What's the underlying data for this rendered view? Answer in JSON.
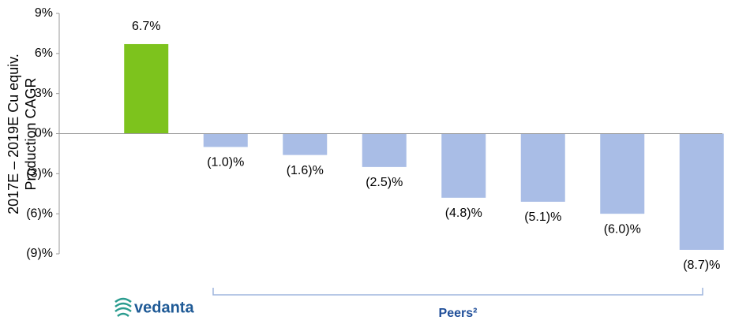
{
  "chart_data": {
    "type": "bar",
    "y_label": [
      "2017E – 2019E Cu equiv.",
      "Production CAGR"
    ],
    "categories": [
      "vedanta",
      null,
      null,
      null,
      null,
      null,
      null,
      null
    ],
    "values": [
      6.7,
      -1.0,
      -1.6,
      -2.5,
      -4.8,
      -5.1,
      -6.0,
      -8.7
    ],
    "value_labels": [
      "6.7%",
      "(1.0)%",
      "(1.6)%",
      "(2.5)%",
      "(4.8)%",
      "(5.1)%",
      "(6.0)%",
      "(8.7)%"
    ],
    "colors": [
      "#7dc31d",
      "#a9bde6",
      "#a9bde6",
      "#a9bde6",
      "#a9bde6",
      "#a9bde6",
      "#a9bde6",
      "#a9bde6"
    ],
    "ylim": [
      -9,
      9
    ],
    "yticks": [
      {
        "value": 9,
        "label": "9%"
      },
      {
        "value": 6,
        "label": "6%"
      },
      {
        "value": 3,
        "label": "3%"
      },
      {
        "value": 0,
        "label": "0%"
      },
      {
        "value": -3,
        "label": "(3)%"
      },
      {
        "value": -6,
        "label": "(6)%"
      },
      {
        "value": -9,
        "label": "(9)%"
      }
    ],
    "annotation": "Peers²"
  }
}
